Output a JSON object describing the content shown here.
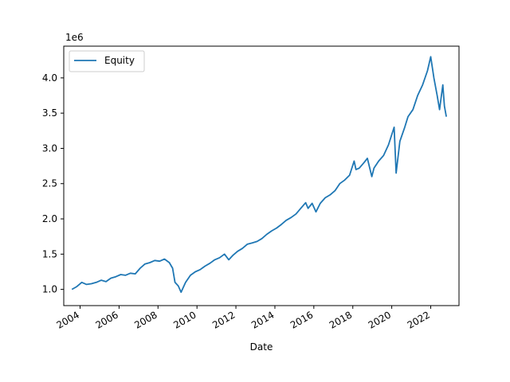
{
  "chart_data": {
    "type": "line",
    "title": "",
    "xlabel": "Date",
    "ylabel": "",
    "y_offset_label": "1e6",
    "xlim": [
      "2003-03-01",
      "2023-06-15"
    ],
    "ylim": [
      0.77,
      4.45
    ],
    "x_ticks": [
      "2004",
      "2006",
      "2008",
      "2010",
      "2012",
      "2014",
      "2016",
      "2018",
      "2020",
      "2022"
    ],
    "y_ticks": [
      "1.0",
      "1.5",
      "2.0",
      "2.5",
      "3.0",
      "3.5",
      "4.0"
    ],
    "legend_position": "upper-left",
    "grid": false,
    "series": [
      {
        "name": "Equity",
        "color": "#1f77b4",
        "points": [
          [
            "2003-08-01",
            1.0
          ],
          [
            "2003-11-01",
            1.04
          ],
          [
            "2004-02-01",
            1.1
          ],
          [
            "2004-05-01",
            1.07
          ],
          [
            "2004-08-01",
            1.08
          ],
          [
            "2004-11-01",
            1.1
          ],
          [
            "2005-02-01",
            1.13
          ],
          [
            "2005-05-01",
            1.11
          ],
          [
            "2005-08-01",
            1.16
          ],
          [
            "2005-11-01",
            1.18
          ],
          [
            "2006-02-01",
            1.21
          ],
          [
            "2006-05-01",
            1.2
          ],
          [
            "2006-08-01",
            1.23
          ],
          [
            "2006-11-01",
            1.22
          ],
          [
            "2007-02-01",
            1.3
          ],
          [
            "2007-05-01",
            1.36
          ],
          [
            "2007-08-01",
            1.38
          ],
          [
            "2007-11-01",
            1.41
          ],
          [
            "2008-02-01",
            1.4
          ],
          [
            "2008-05-01",
            1.43
          ],
          [
            "2008-08-01",
            1.38
          ],
          [
            "2008-10-01",
            1.3
          ],
          [
            "2008-11-15",
            1.1
          ],
          [
            "2009-01-15",
            1.05
          ],
          [
            "2009-03-08",
            0.96
          ],
          [
            "2009-06-01",
            1.1
          ],
          [
            "2009-09-01",
            1.2
          ],
          [
            "2009-12-01",
            1.25
          ],
          [
            "2010-03-01",
            1.28
          ],
          [
            "2010-06-01",
            1.33
          ],
          [
            "2010-09-01",
            1.37
          ],
          [
            "2010-12-01",
            1.42
          ],
          [
            "2011-03-01",
            1.45
          ],
          [
            "2011-06-01",
            1.5
          ],
          [
            "2011-08-20",
            1.42
          ],
          [
            "2011-11-01",
            1.48
          ],
          [
            "2012-02-01",
            1.54
          ],
          [
            "2012-05-01",
            1.58
          ],
          [
            "2012-08-01",
            1.64
          ],
          [
            "2012-11-01",
            1.66
          ],
          [
            "2013-02-01",
            1.68
          ],
          [
            "2013-05-01",
            1.72
          ],
          [
            "2013-08-01",
            1.78
          ],
          [
            "2013-11-01",
            1.83
          ],
          [
            "2014-02-01",
            1.87
          ],
          [
            "2014-05-01",
            1.92
          ],
          [
            "2014-08-01",
            1.98
          ],
          [
            "2014-11-01",
            2.02
          ],
          [
            "2015-02-01",
            2.07
          ],
          [
            "2015-05-01",
            2.15
          ],
          [
            "2015-08-01",
            2.23
          ],
          [
            "2015-09-15",
            2.15
          ],
          [
            "2015-12-01",
            2.22
          ],
          [
            "2016-02-10",
            2.1
          ],
          [
            "2016-05-01",
            2.22
          ],
          [
            "2016-08-01",
            2.3
          ],
          [
            "2016-11-01",
            2.34
          ],
          [
            "2017-02-01",
            2.4
          ],
          [
            "2017-05-01",
            2.5
          ],
          [
            "2017-08-01",
            2.55
          ],
          [
            "2017-11-01",
            2.62
          ],
          [
            "2018-01-25",
            2.82
          ],
          [
            "2018-03-01",
            2.7
          ],
          [
            "2018-05-01",
            2.72
          ],
          [
            "2018-08-01",
            2.8
          ],
          [
            "2018-10-01",
            2.86
          ],
          [
            "2018-12-24",
            2.6
          ],
          [
            "2019-02-01",
            2.72
          ],
          [
            "2019-05-01",
            2.82
          ],
          [
            "2019-08-01",
            2.9
          ],
          [
            "2019-11-01",
            3.05
          ],
          [
            "2020-02-15",
            3.3
          ],
          [
            "2020-03-23",
            2.65
          ],
          [
            "2020-06-01",
            3.1
          ],
          [
            "2020-09-01",
            3.3
          ],
          [
            "2020-11-01",
            3.45
          ],
          [
            "2021-02-01",
            3.55
          ],
          [
            "2021-05-01",
            3.75
          ],
          [
            "2021-08-01",
            3.9
          ],
          [
            "2021-11-01",
            4.1
          ],
          [
            "2022-01-01",
            4.3
          ],
          [
            "2022-03-01",
            4.0
          ],
          [
            "2022-05-01",
            3.75
          ],
          [
            "2022-06-15",
            3.55
          ],
          [
            "2022-08-15",
            3.9
          ],
          [
            "2022-09-15",
            3.6
          ],
          [
            "2022-10-20",
            3.45
          ]
        ]
      }
    ]
  }
}
